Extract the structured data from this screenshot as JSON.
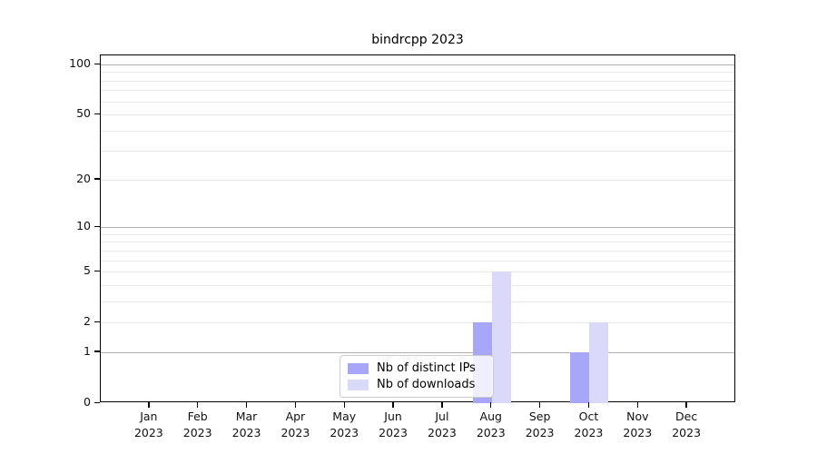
{
  "chart_data": {
    "type": "bar",
    "title": "bindrcpp 2023",
    "categories": [
      "Jan",
      "Feb",
      "Mar",
      "Apr",
      "May",
      "Jun",
      "Jul",
      "Aug",
      "Sep",
      "Oct",
      "Nov",
      "Dec"
    ],
    "x_axis": {
      "tick_label_line2": "2023"
    },
    "series": [
      {
        "name": "Nb of distinct IPs",
        "color": "#a8a6f8",
        "values": [
          0,
          0,
          0,
          0,
          0,
          0,
          0,
          2,
          0,
          1,
          0,
          0
        ]
      },
      {
        "name": "Nb of downloads",
        "color": "#dad9f9",
        "values": [
          0,
          0,
          0,
          0,
          0,
          0,
          0,
          5,
          0,
          2,
          0,
          0
        ]
      }
    ],
    "y_axis": {
      "scale": "log10(1+value)",
      "tick_values": [
        0,
        1,
        2,
        5,
        10,
        20,
        50,
        100
      ],
      "major_gridlines": [
        1,
        10,
        100
      ],
      "minor_gridlines": [
        2,
        3,
        4,
        5,
        6,
        7,
        8,
        9,
        20,
        30,
        40,
        50,
        60,
        70,
        80,
        90
      ],
      "range": [
        0,
        114
      ]
    },
    "legend": {
      "position": "bottom-center"
    },
    "grid": "horizontal"
  },
  "colors": {
    "bar_distinct_ips": "#a8a6f8",
    "bar_downloads": "#dad9f9",
    "gridline_major": "#b3b3b3",
    "gridline_minor": "#e9e9e9",
    "axis": "#000000",
    "tick_text": "#111111",
    "legend_border": "#cccccc"
  }
}
